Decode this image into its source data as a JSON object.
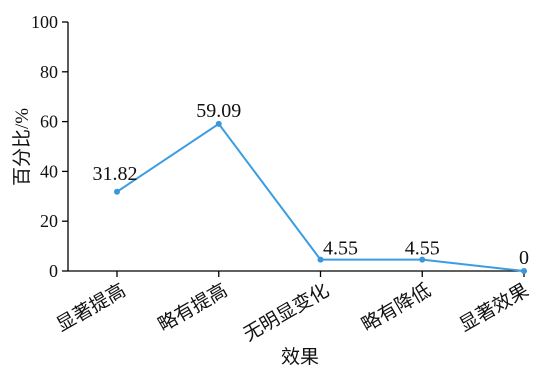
{
  "chart_data": {
    "type": "line",
    "categories": [
      "显著提高",
      "略有提高",
      "无明显变化",
      "略有降低",
      "显著效果"
    ],
    "values": [
      31.82,
      59.09,
      4.55,
      4.55,
      0
    ],
    "data_labels": [
      "31.82",
      "59.09",
      "4.55",
      "4.55",
      "0"
    ],
    "xlabel": "效果",
    "ylabel": "百分比/%",
    "ylim": [
      0,
      100
    ],
    "yticks": [
      0,
      20,
      40,
      60,
      80,
      100
    ],
    "grid": false,
    "colors": {
      "line": "#3b9de1",
      "marker": "#3a97dc",
      "axis": "#000000"
    }
  }
}
